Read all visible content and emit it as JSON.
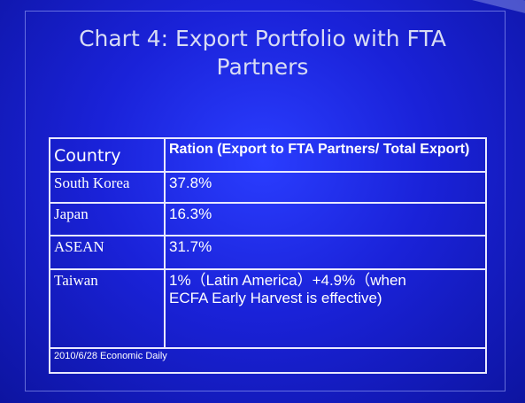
{
  "title": "Chart 4: Export Portfolio with FTA Partners",
  "table": {
    "header": [
      "Country",
      "Ration (Export to FTA Partners/ Total Export)"
    ],
    "rows": [
      [
        "South Korea",
        "37.8%"
      ],
      [
        "Japan",
        "16.3%"
      ],
      [
        "ASEAN",
        "31.7%"
      ],
      [
        "Taiwan",
        "1%（Latin America）+4.9%（when  ECFA Early Harvest is effective)"
      ]
    ],
    "source": "2010/6/28 Economic Daily"
  }
}
